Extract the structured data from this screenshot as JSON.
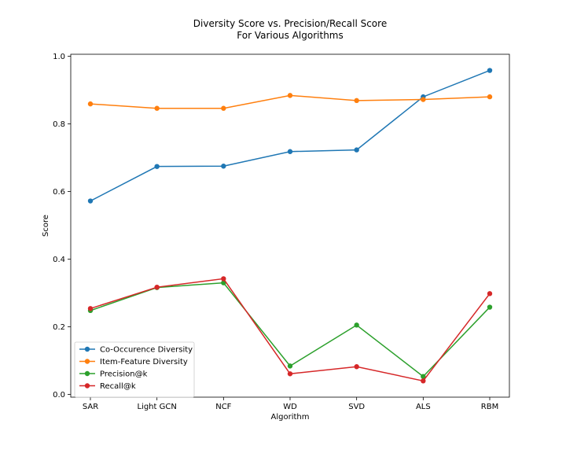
{
  "chart_data": {
    "type": "line",
    "title": "Diversity Score vs. Precision/Recall Score",
    "subtitle": "For Various Algorithms",
    "xlabel": "Algorithm",
    "ylabel": "Score",
    "categories": [
      "SAR",
      "Light GCN",
      "NCF",
      "WD",
      "SVD",
      "ALS",
      "RBM"
    ],
    "ylim": [
      0.0,
      1.0
    ],
    "yticks": [
      "0.0",
      "0.2",
      "0.4",
      "0.6",
      "0.8",
      "1.0"
    ],
    "grid": false,
    "legend_position": "lower-left",
    "series": [
      {
        "name": "Co-Occurence Diversity",
        "color": "#1f77b4",
        "values": [
          0.572,
          0.674,
          0.675,
          0.718,
          0.723,
          0.88,
          0.958
        ]
      },
      {
        "name": "Item-Feature Diversity",
        "color": "#ff7f0e",
        "values": [
          0.859,
          0.846,
          0.846,
          0.884,
          0.869,
          0.872,
          0.88
        ]
      },
      {
        "name": "Precision@k",
        "color": "#2ca02c",
        "values": [
          0.248,
          0.316,
          0.33,
          0.084,
          0.205,
          0.053,
          0.258
        ]
      },
      {
        "name": "Recall@k",
        "color": "#d62728",
        "values": [
          0.254,
          0.317,
          0.342,
          0.061,
          0.082,
          0.04,
          0.298
        ]
      }
    ]
  }
}
